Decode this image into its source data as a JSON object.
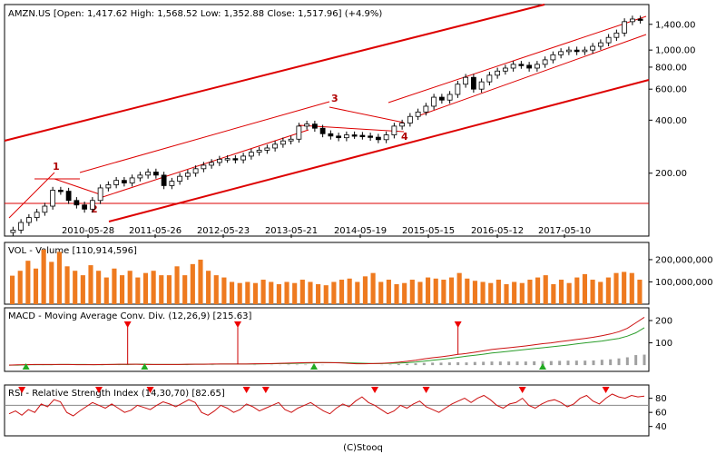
{
  "chart_data": [
    {
      "type": "candlestick",
      "title": "AMZN.US [Open: 1,417.62  High: 1,568.52  Low: 1,352.88  Close: 1,517.96] (+4.9%)",
      "scale": "log",
      "ylim": [
        90,
        1750
      ],
      "yticks": [
        {
          "label": "1,400.00",
          "value": 1400
        },
        {
          "label": "1,000.00",
          "value": 1000
        },
        {
          "label": "800.00",
          "value": 800
        },
        {
          "label": "600.00",
          "value": 600
        },
        {
          "label": "400.00",
          "value": 400
        },
        {
          "label": "200.00",
          "value": 200
        }
      ],
      "xticks": [
        "2010-05-28",
        "2011-05-26",
        "2012-05-23",
        "2013-05-21",
        "2014-05-19",
        "2015-05-15",
        "2016-05-12",
        "2017-05-10"
      ],
      "closes": [
        95,
        105,
        112,
        120,
        130,
        160,
        158,
        140,
        132,
        125,
        140,
        165,
        172,
        182,
        176,
        188,
        195,
        203,
        195,
        170,
        180,
        192,
        200,
        212,
        222,
        230,
        240,
        242,
        238,
        250,
        263,
        270,
        278,
        292,
        305,
        312,
        370,
        380,
        360,
        335,
        325,
        318,
        330,
        328,
        325,
        320,
        310,
        330,
        370,
        385,
        420,
        445,
        480,
        540,
        520,
        560,
        640,
        700,
        600,
        660,
        720,
        760,
        790,
        830,
        820,
        790,
        830,
        880,
        940,
        980,
        1000,
        980,
        1000,
        1050,
        1100,
        1180,
        1250,
        1450,
        1500,
        1480
      ],
      "annotations": [
        "1",
        "2",
        "3",
        "4"
      ],
      "markers": [
        "3"
      ]
    },
    {
      "type": "bar",
      "title": "VOL - Volume [110,914,596]",
      "yticks": [
        {
          "label": "200,000,000",
          "value": 200000000
        },
        {
          "label": "100,000,000",
          "value": 100000000
        }
      ],
      "ylim": [
        0,
        265000000
      ],
      "values": [
        128,
        150,
        195,
        160,
        245,
        190,
        235,
        170,
        150,
        130,
        175,
        150,
        120,
        160,
        130,
        150,
        120,
        140,
        150,
        130,
        130,
        170,
        130,
        180,
        200,
        150,
        130,
        120,
        100,
        95,
        100,
        95,
        110,
        100,
        90,
        100,
        95,
        110,
        100,
        90,
        85,
        100,
        110,
        115,
        100,
        125,
        140,
        100,
        110,
        90,
        95,
        110,
        100,
        120,
        115,
        110,
        120,
        140,
        115,
        105,
        100,
        95,
        110,
        90,
        100,
        95,
        110,
        120,
        130,
        90,
        110,
        95,
        120,
        135,
        110,
        100,
        120,
        140,
        145,
        140,
        110
      ]
    },
    {
      "type": "line",
      "title": "MACD - Moving Average Conv. Div. (12,26,9) [215.63]",
      "yticks": [
        {
          "label": "200",
          "value": 200
        },
        {
          "label": "100",
          "value": 100
        }
      ],
      "ylim": [
        -20,
        245
      ],
      "macd": [
        0,
        1,
        2,
        3,
        3,
        3,
        3,
        3,
        2,
        2,
        2,
        3,
        3,
        4,
        4,
        4,
        3,
        3,
        3,
        3,
        3,
        4,
        4,
        4,
        5,
        5,
        5,
        5,
        5,
        6,
        6,
        7,
        8,
        9,
        10,
        11,
        12,
        12,
        11,
        10,
        8,
        6,
        6,
        7,
        8,
        10,
        13,
        17,
        22,
        28,
        33,
        37,
        42,
        48,
        52,
        58,
        64,
        70,
        74,
        78,
        82,
        86,
        91,
        96,
        100,
        105,
        110,
        115,
        120,
        125,
        132,
        140,
        150,
        165,
        190,
        215
      ],
      "signal": [
        0,
        0,
        1,
        2,
        2,
        2,
        3,
        3,
        3,
        3,
        2,
        2,
        3,
        3,
        3,
        4,
        4,
        3,
        3,
        3,
        3,
        3,
        4,
        4,
        4,
        5,
        5,
        5,
        5,
        5,
        6,
        6,
        7,
        7,
        8,
        9,
        10,
        11,
        11,
        11,
        10,
        9,
        8,
        7,
        7,
        8,
        9,
        11,
        14,
        18,
        22,
        26,
        30,
        35,
        40,
        44,
        49,
        54,
        58,
        62,
        66,
        70,
        74,
        78,
        82,
        86,
        90,
        95,
        100,
        104,
        108,
        114,
        120,
        130,
        145,
        168
      ],
      "histogram": [
        0,
        0,
        1,
        1,
        1,
        1,
        0,
        0,
        0,
        0,
        0,
        1,
        0,
        1,
        1,
        0,
        0,
        0,
        0,
        0,
        0,
        1,
        0,
        0,
        1,
        0,
        0,
        0,
        0,
        1,
        0,
        1,
        1,
        2,
        2,
        2,
        2,
        1,
        0,
        0,
        0,
        0,
        0,
        0,
        1,
        2,
        4,
        6,
        8,
        10,
        11,
        11,
        12,
        13,
        12,
        14,
        15,
        16,
        16,
        16,
        16,
        16,
        17,
        18,
        18,
        19,
        20,
        20,
        20,
        21,
        24,
        26,
        30,
        35,
        45,
        47
      ],
      "sell_markers": [
        14,
        27,
        53
      ],
      "buy_markers": [
        2,
        16,
        36,
        63
      ]
    },
    {
      "type": "line",
      "title": "RSI - Relative Strength Index (14,30,70) [82.65]",
      "yticks": [
        {
          "label": "80",
          "value": 80
        },
        {
          "label": "60",
          "value": 60
        },
        {
          "label": "40",
          "value": 40
        }
      ],
      "ylim": [
        28,
        95
      ],
      "levels": [
        70
      ],
      "values": [
        58,
        62,
        56,
        64,
        60,
        72,
        68,
        78,
        75,
        60,
        55,
        62,
        68,
        74,
        70,
        66,
        72,
        66,
        60,
        63,
        70,
        67,
        64,
        70,
        75,
        72,
        68,
        73,
        78,
        74,
        60,
        56,
        62,
        70,
        66,
        60,
        64,
        72,
        68,
        62,
        66,
        70,
        74,
        64,
        60,
        66,
        70,
        74,
        68,
        62,
        58,
        66,
        72,
        68,
        76,
        82,
        74,
        70,
        64,
        58,
        62,
        70,
        66,
        72,
        76,
        68,
        64,
        60,
        66,
        72,
        76,
        80,
        74,
        80,
        84,
        78,
        70,
        66,
        72,
        74,
        80,
        70,
        66,
        72,
        76,
        78,
        74,
        68,
        72,
        80,
        84,
        76,
        72,
        80,
        86,
        82,
        80,
        84,
        82,
        83
      ],
      "sell_markers": [
        2,
        14,
        22,
        37,
        40,
        57,
        65,
        80,
        93
      ],
      "buy_markers": []
    }
  ],
  "footer": "(C)Stooq"
}
